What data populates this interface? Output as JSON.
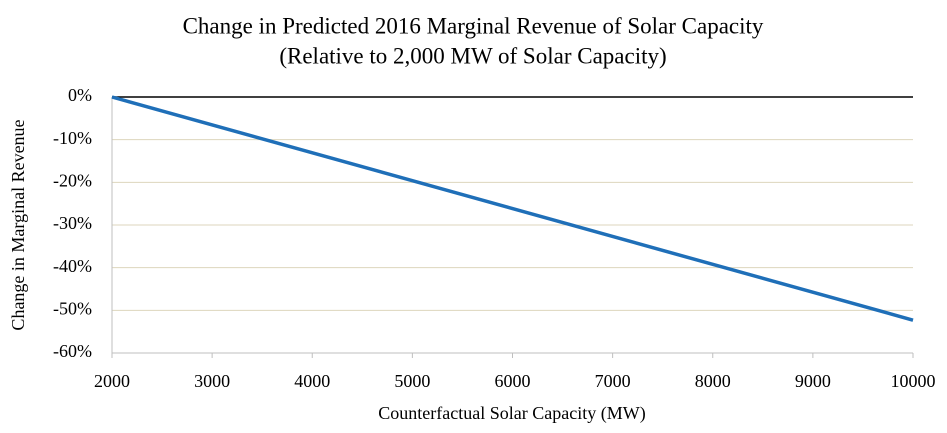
{
  "chart_data": {
    "type": "line",
    "title": "Change in Predicted 2016 Marginal Revenue of Solar Capacity",
    "subtitle": "(Relative to 2,000 MW of Solar Capacity)",
    "x_label": "Counterfactual Solar Capacity (MW)",
    "y_label": "Change in Marginal Revenue",
    "x": [
      2000,
      10000
    ],
    "series": [
      {
        "name": "Change in Marginal Revenue",
        "color": "#1f6fb8",
        "values": [
          0,
          -52.3
        ]
      }
    ],
    "xlim": [
      2000,
      10000
    ],
    "xticks": [
      2000,
      3000,
      4000,
      5000,
      6000,
      7000,
      8000,
      9000,
      10000
    ],
    "ylim": [
      -60,
      0
    ],
    "yticks": [
      {
        "value": 0,
        "label": "0%"
      },
      {
        "value": -10,
        "label": "-10%"
      },
      {
        "value": -20,
        "label": "-20%"
      },
      {
        "value": -30,
        "label": "-30%"
      },
      {
        "value": -40,
        "label": "-40%"
      },
      {
        "value": -50,
        "label": "-50%"
      },
      {
        "value": -60,
        "label": "-60%"
      }
    ],
    "grid": true,
    "grid_color": "#ddd6bd"
  }
}
